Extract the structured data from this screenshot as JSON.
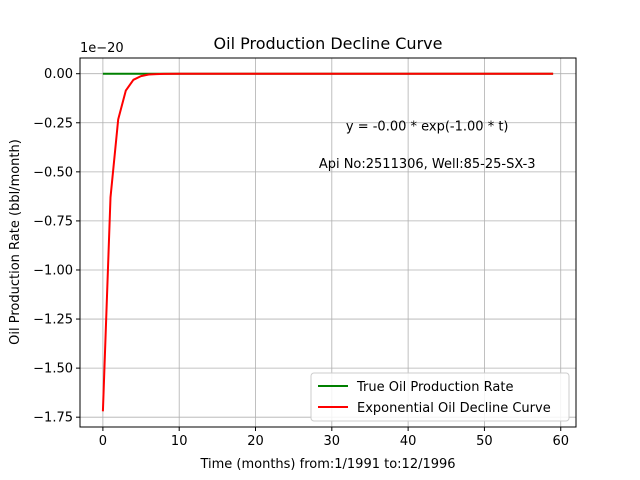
{
  "chart_data": {
    "type": "line",
    "title": "Oil Production Decline Curve",
    "xlabel": "Time (months) from:1/1991 to:12/1996",
    "ylabel": "Oil Production Rate (bbl/month)",
    "y_offset_label": "1e−20",
    "xlim": [
      -3,
      62
    ],
    "ylim": [
      -1.8,
      0.08
    ],
    "x_ticks": [
      0,
      10,
      20,
      30,
      40,
      50,
      60
    ],
    "x_tick_labels": [
      "0",
      "10",
      "20",
      "30",
      "40",
      "50",
      "60"
    ],
    "y_ticks": [
      0.0,
      -0.25,
      -0.5,
      -0.75,
      -1.0,
      -1.25,
      -1.5,
      -1.75
    ],
    "y_tick_labels": [
      "0.00",
      "−0.25",
      "−0.50",
      "−0.75",
      "−1.00",
      "−1.25",
      "−1.50",
      "−1.75"
    ],
    "grid": true,
    "legend_position": "lower-right",
    "annotations": [
      {
        "text": "y = -0.00 * exp(-1.00 * t)",
        "x": 42.5,
        "y": -0.29
      },
      {
        "text": "Api No:2511306, Well:85-25-SX-3",
        "x": 42.5,
        "y": -0.48
      }
    ],
    "series": [
      {
        "name": "True Oil Production Rate",
        "color": "#008000",
        "x": [
          0,
          59
        ],
        "y": [
          0.0,
          0.0
        ]
      },
      {
        "name": "Exponential Oil Decline Curve",
        "color": "#ff0000",
        "x": [
          0,
          1,
          2,
          3,
          4,
          5,
          6,
          7,
          8,
          10,
          15,
          20,
          30,
          40,
          50,
          59
        ],
        "y": [
          -1.72,
          -0.63,
          -0.233,
          -0.086,
          -0.031,
          -0.012,
          -0.004,
          -0.002,
          -0.001,
          0.0,
          0.0,
          0.0,
          0.0,
          0.0,
          0.0,
          0.0
        ]
      }
    ]
  }
}
